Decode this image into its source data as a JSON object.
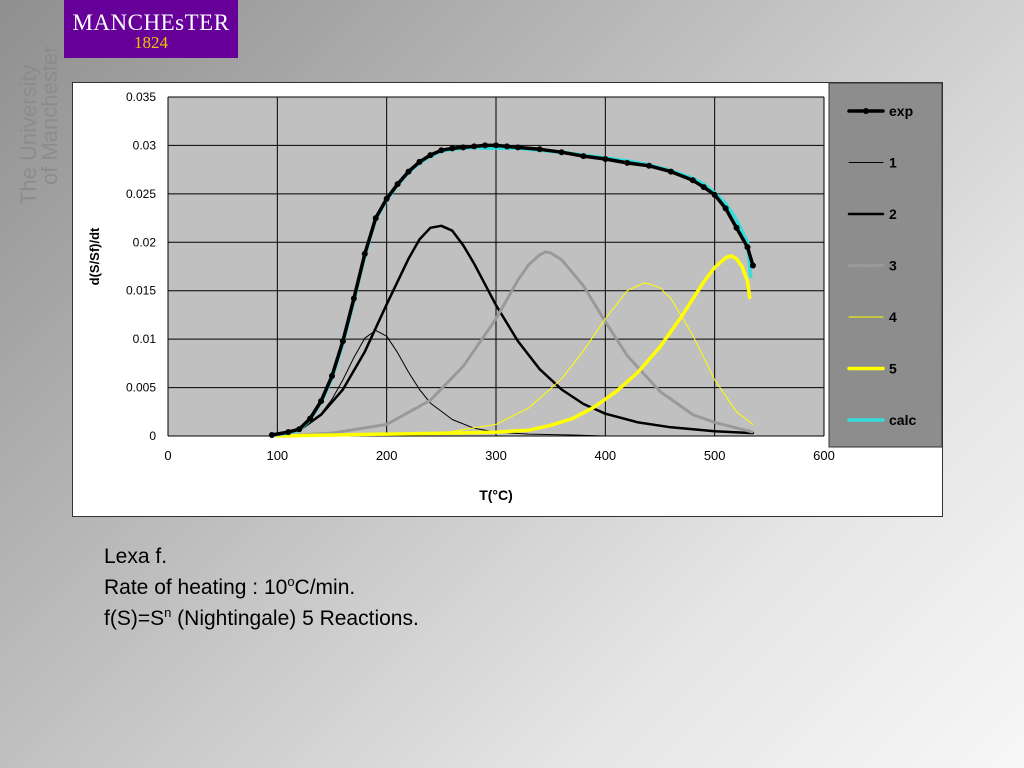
{
  "logo": {
    "name": "MANCHEsTER",
    "year": "1824"
  },
  "side_text": {
    "line1": "The University",
    "line2": "of Manchester"
  },
  "caption": {
    "line1": "Lexa f.",
    "line2_prefix": "Rate of heating : 10",
    "line2_sup": "o",
    "line2_suffix": "C/min.",
    "line3_prefix": "f(S)=S",
    "line3_sup": "n",
    "line3_suffix": " (Nightingale) 5 Reactions."
  },
  "chart_data": {
    "type": "line",
    "title": "",
    "xlabel": "T(°C)",
    "ylabel": "d(S/Sf)/dt",
    "xlim": [
      0,
      600
    ],
    "ylim": [
      0,
      0.035
    ],
    "xticks": [
      "0",
      "100",
      "200",
      "300",
      "400",
      "500",
      "600"
    ],
    "yticks": [
      "0",
      "0.005",
      "0.01",
      "0.015",
      "0.02",
      "0.025",
      "0.03",
      "0.035"
    ],
    "grid": true,
    "legend_position": "right",
    "series": [
      {
        "name": "exp",
        "color": "#000000",
        "style": "thick-markers",
        "x": [
          95,
          110,
          120,
          130,
          140,
          150,
          160,
          170,
          180,
          190,
          200,
          210,
          220,
          230,
          240,
          250,
          260,
          270,
          280,
          290,
          300,
          310,
          320,
          340,
          360,
          380,
          400,
          420,
          440,
          460,
          480,
          490,
          500,
          510,
          520,
          530,
          535
        ],
        "y": [
          0.0001,
          0.0004,
          0.0007,
          0.0018,
          0.0036,
          0.0062,
          0.0098,
          0.0142,
          0.0188,
          0.0225,
          0.0245,
          0.026,
          0.0273,
          0.0283,
          0.029,
          0.0295,
          0.0297,
          0.0298,
          0.0299,
          0.03,
          0.03,
          0.0299,
          0.0298,
          0.0296,
          0.0293,
          0.0289,
          0.0286,
          0.0282,
          0.0279,
          0.0273,
          0.0264,
          0.0257,
          0.0249,
          0.0235,
          0.0215,
          0.0195,
          0.0176
        ]
      },
      {
        "name": "1",
        "color": "#000000",
        "style": "thin",
        "x": [
          95,
          120,
          140,
          150,
          160,
          170,
          180,
          190,
          200,
          210,
          220,
          230,
          240,
          260,
          280,
          300,
          330,
          370,
          400
        ],
        "y": [
          0.0001,
          0.0006,
          0.0023,
          0.0038,
          0.0058,
          0.0081,
          0.0101,
          0.0109,
          0.0103,
          0.0086,
          0.0066,
          0.0048,
          0.0034,
          0.0017,
          0.0008,
          0.0004,
          0.0002,
          0.0001,
          0.0
        ]
      },
      {
        "name": "2",
        "color": "#000000",
        "style": "medium",
        "x": [
          95,
          120,
          140,
          160,
          180,
          200,
          220,
          230,
          240,
          250,
          260,
          270,
          280,
          300,
          320,
          340,
          360,
          380,
          400,
          430,
          460,
          500,
          535
        ],
        "y": [
          0.0001,
          0.0006,
          0.0022,
          0.0048,
          0.0087,
          0.0136,
          0.0183,
          0.0203,
          0.0215,
          0.0217,
          0.0212,
          0.0197,
          0.0178,
          0.0135,
          0.0098,
          0.0069,
          0.0048,
          0.0033,
          0.0023,
          0.0014,
          0.0009,
          0.0005,
          0.0003
        ]
      },
      {
        "name": "3",
        "color": "#999999",
        "style": "dotted",
        "x": [
          100,
          150,
          200,
          240,
          270,
          300,
          320,
          330,
          340,
          345,
          350,
          360,
          380,
          400,
          420,
          450,
          480,
          500,
          535
        ],
        "y": [
          0.0,
          0.0003,
          0.0012,
          0.0037,
          0.0072,
          0.0121,
          0.0161,
          0.0177,
          0.0187,
          0.019,
          0.0189,
          0.0182,
          0.0155,
          0.0118,
          0.0083,
          0.0046,
          0.0022,
          0.0014,
          0.0004
        ]
      },
      {
        "name": "4",
        "color": "#ffff00",
        "style": "thin",
        "x": [
          100,
          200,
          250,
          300,
          330,
          360,
          380,
          400,
          420,
          435,
          440,
          450,
          460,
          480,
          500,
          520,
          535
        ],
        "y": [
          0.0,
          0.0001,
          0.0003,
          0.0012,
          0.0029,
          0.0059,
          0.0088,
          0.0121,
          0.015,
          0.0158,
          0.0157,
          0.0153,
          0.0142,
          0.0104,
          0.0058,
          0.0025,
          0.0012
        ]
      },
      {
        "name": "5",
        "color": "#ffff00",
        "style": "thick",
        "x": [
          100,
          200,
          260,
          300,
          330,
          350,
          370,
          390,
          410,
          430,
          450,
          470,
          490,
          500,
          510,
          515,
          520,
          525,
          530,
          532
        ],
        "y": [
          0.0,
          0.0002,
          0.0003,
          0.0004,
          0.0006,
          0.0011,
          0.0018,
          0.003,
          0.0046,
          0.0066,
          0.0092,
          0.0124,
          0.0159,
          0.0174,
          0.0184,
          0.0186,
          0.0183,
          0.0175,
          0.016,
          0.0143
        ]
      },
      {
        "name": "calc",
        "color": "#33dddd",
        "style": "thick",
        "x": [
          95,
          110,
          120,
          130,
          140,
          150,
          160,
          170,
          180,
          190,
          200,
          210,
          220,
          230,
          240,
          250,
          260,
          270,
          280,
          290,
          300,
          310,
          320,
          340,
          360,
          380,
          400,
          420,
          440,
          460,
          480,
          490,
          500,
          510,
          520,
          530,
          533
        ],
        "y": [
          0.0001,
          0.0003,
          0.0006,
          0.0017,
          0.0035,
          0.006,
          0.0096,
          0.014,
          0.0186,
          0.0224,
          0.0244,
          0.0259,
          0.0272,
          0.0282,
          0.0289,
          0.0294,
          0.0296,
          0.0297,
          0.0298,
          0.0297,
          0.0297,
          0.0297,
          0.0297,
          0.0295,
          0.0293,
          0.029,
          0.0287,
          0.0284,
          0.028,
          0.0274,
          0.0266,
          0.026,
          0.0251,
          0.024,
          0.0223,
          0.02,
          0.0165
        ]
      }
    ]
  }
}
